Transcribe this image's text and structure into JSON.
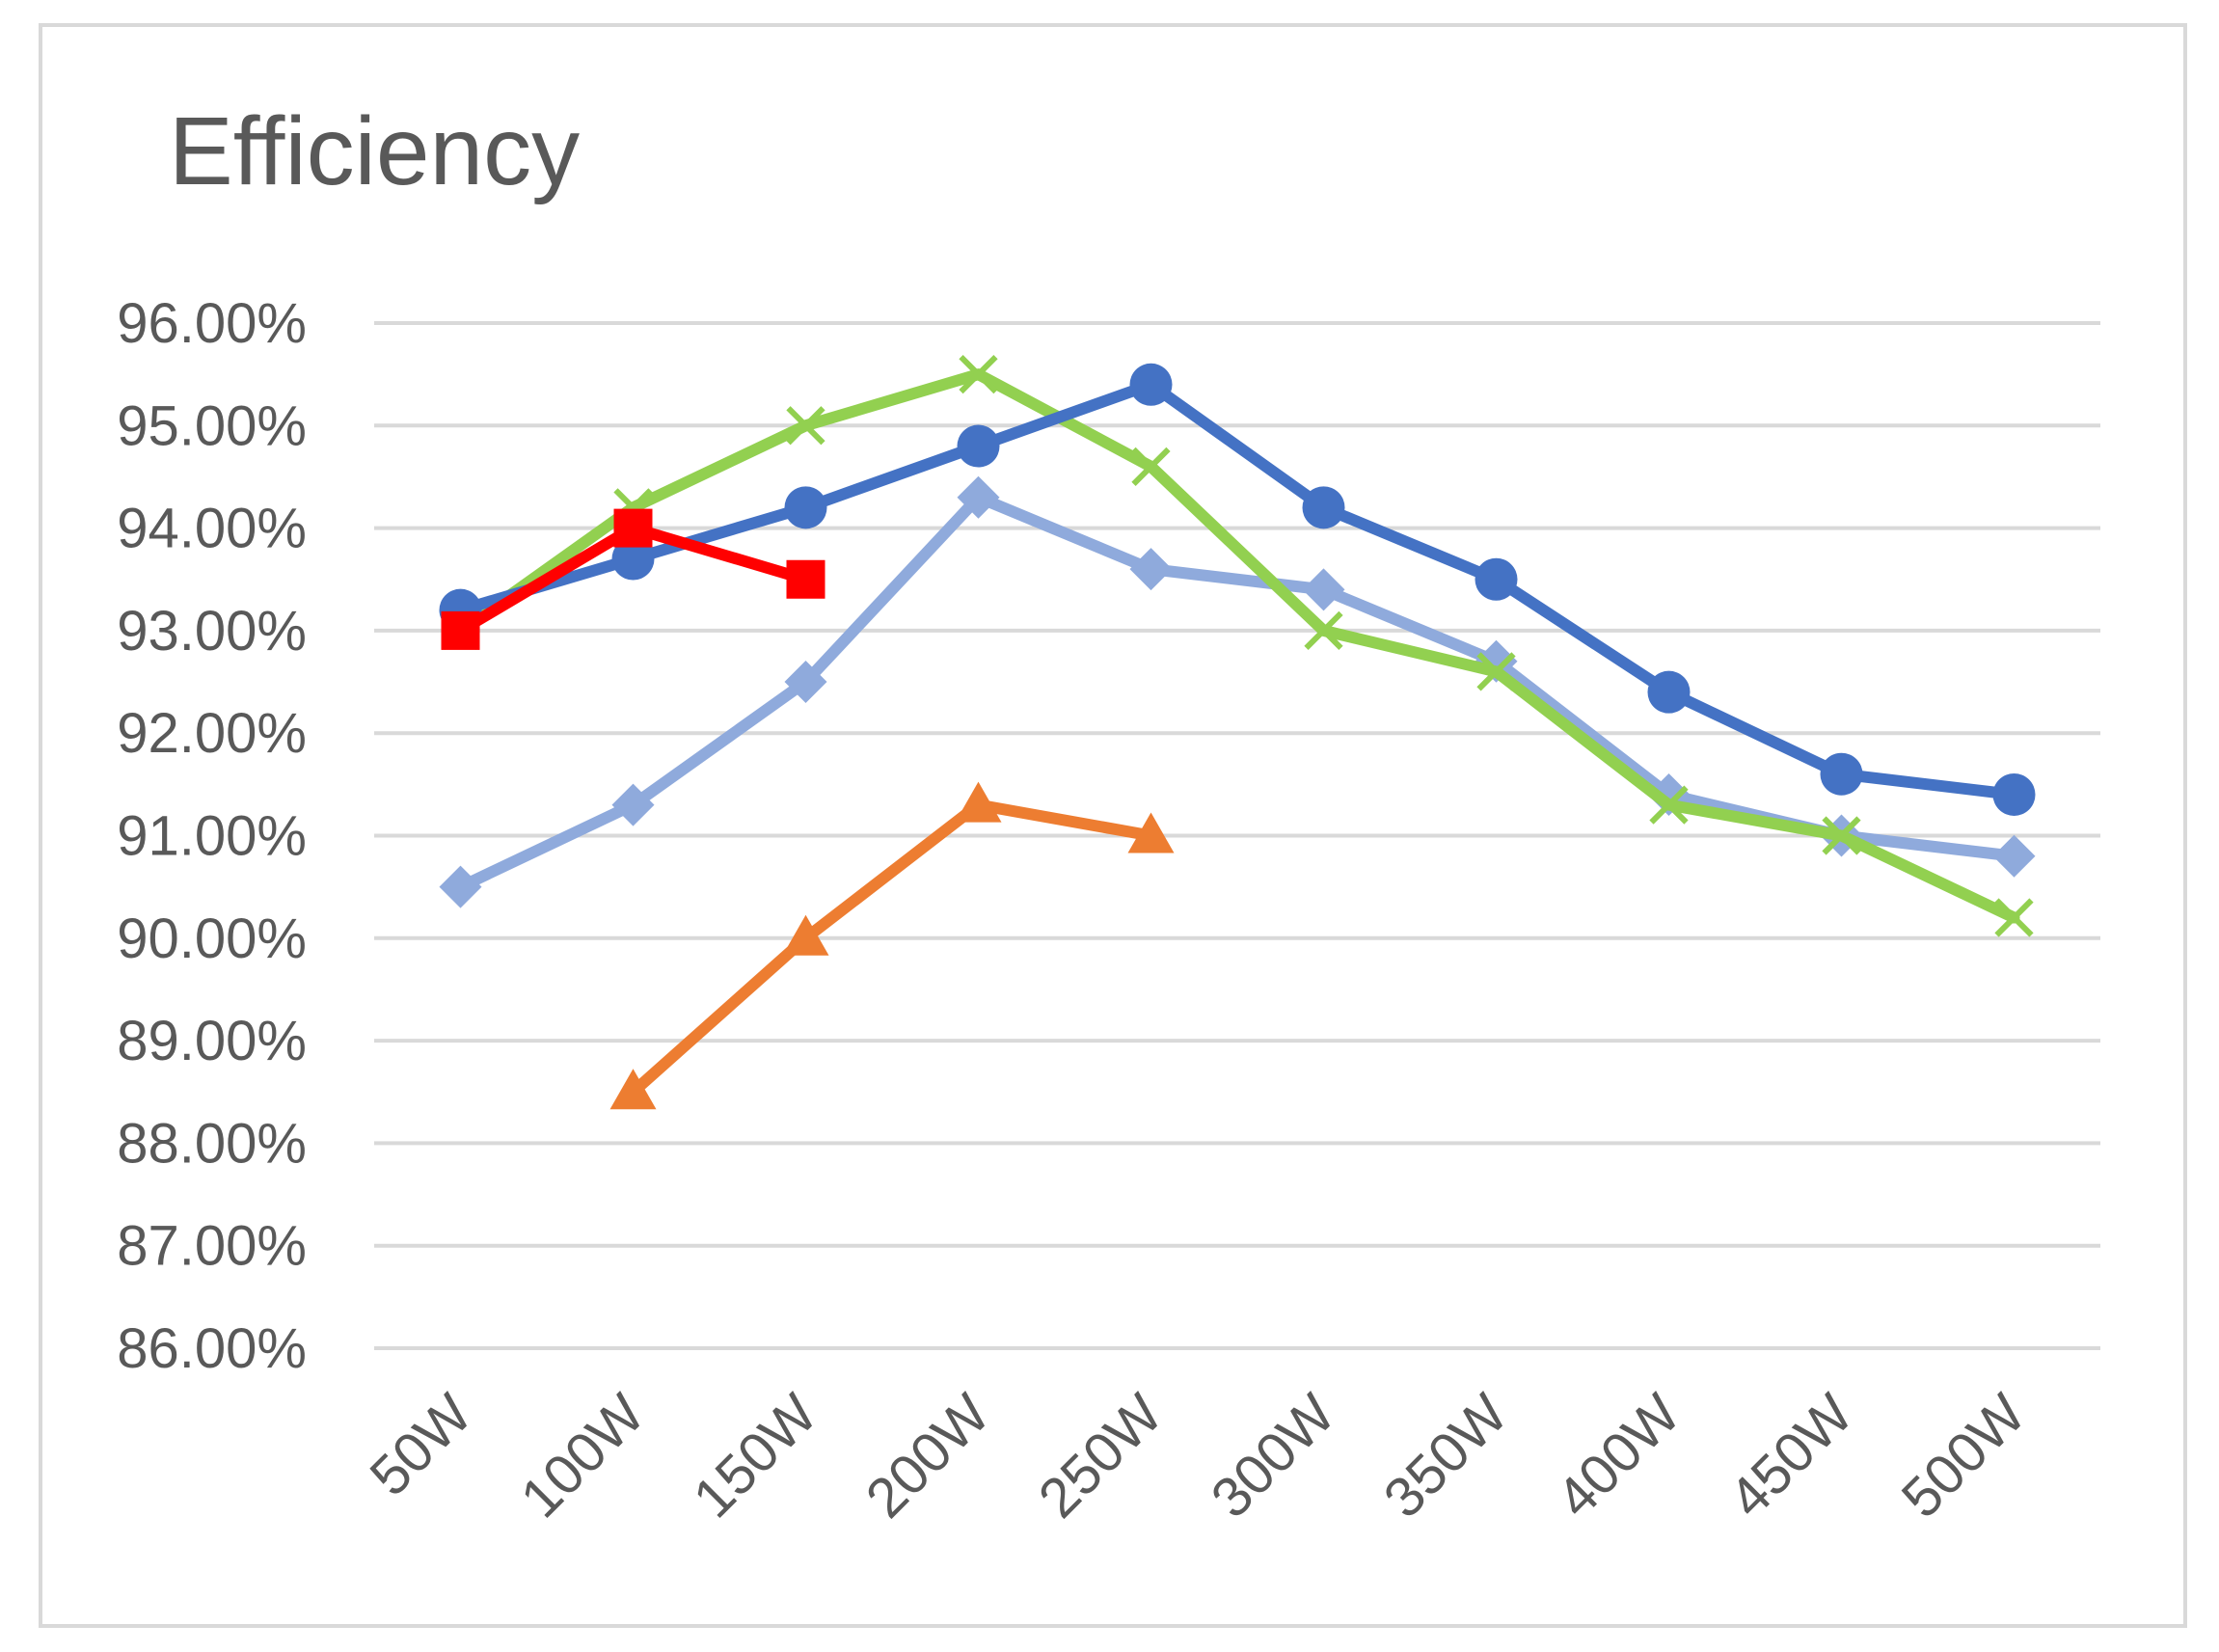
{
  "chart_data": {
    "type": "line",
    "title": "Efficiency",
    "xlabel": "",
    "ylabel": "",
    "categories": [
      "50W",
      "100W",
      "150W",
      "200W",
      "250W",
      "300W",
      "350W",
      "400W",
      "450W",
      "500W"
    ],
    "ylim": [
      86,
      96
    ],
    "ytick_step": 1,
    "y_tick_labels": [
      "86.00%",
      "87.00%",
      "88.00%",
      "89.00%",
      "90.00%",
      "91.00%",
      "92.00%",
      "93.00%",
      "94.00%",
      "95.00%",
      "96.00%"
    ],
    "grid": true,
    "legend": "none",
    "series": [
      {
        "name": "light-blue-diamond",
        "color": "#8faadc",
        "marker": "diamond",
        "values": [
          90.5,
          91.3,
          92.5,
          94.3,
          93.6,
          93.4,
          92.7,
          91.4,
          91.0,
          90.8
        ]
      },
      {
        "name": "orange-triangle",
        "color": "#ed7d31",
        "marker": "triangle",
        "values": [
          null,
          88.5,
          90.0,
          91.3,
          91.0,
          null,
          null,
          null,
          null,
          null
        ]
      },
      {
        "name": "green-x",
        "color": "#92d050",
        "marker": "x",
        "values": [
          93.0,
          94.2,
          95.0,
          95.5,
          94.6,
          93.0,
          92.6,
          91.3,
          91.0,
          90.2
        ]
      },
      {
        "name": "blue-circle",
        "color": "#4472c4",
        "marker": "circle",
        "values": [
          93.2,
          93.7,
          94.2,
          94.8,
          95.4,
          94.2,
          93.5,
          92.4,
          91.6,
          91.4
        ]
      },
      {
        "name": "red-square",
        "color": "#ff0000",
        "marker": "square",
        "values": [
          93.0,
          94.0,
          93.5,
          null,
          null,
          null,
          null,
          null,
          null,
          null
        ]
      }
    ]
  }
}
